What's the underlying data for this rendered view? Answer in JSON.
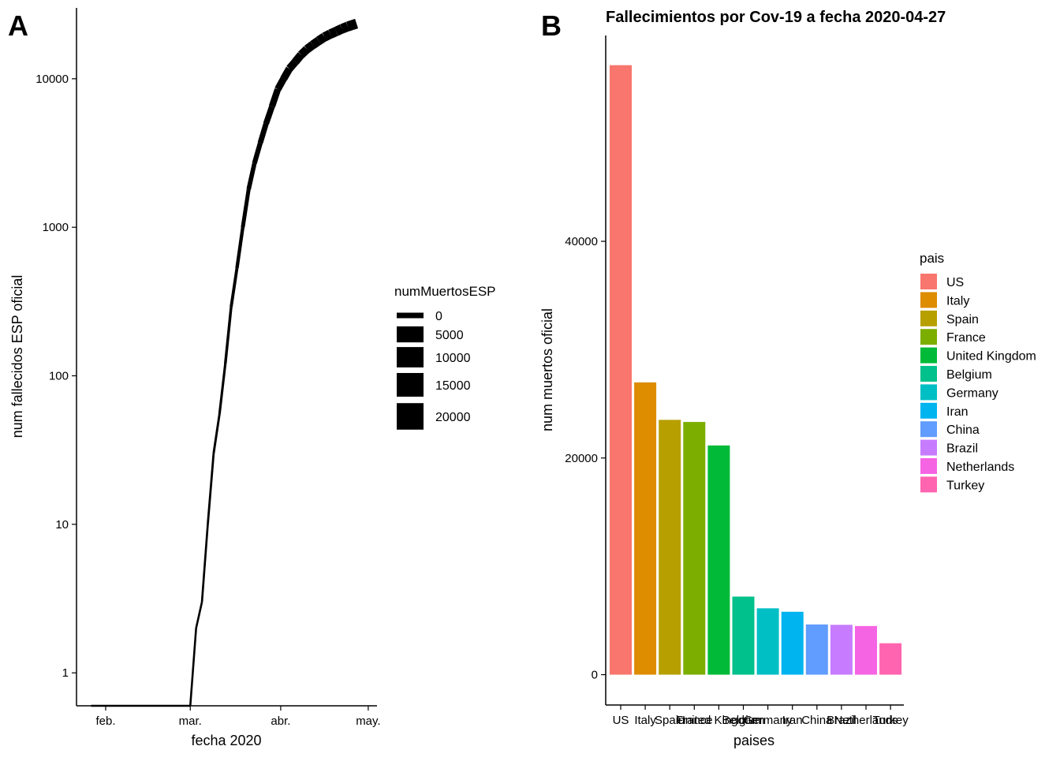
{
  "panels": {
    "a_letter": "A",
    "b_letter": "B"
  },
  "chart_data": [
    {
      "type": "line",
      "panel": "A",
      "xlabel": "fecha 2020",
      "ylabel": "num fallecidos ESP oficial",
      "yscale": "log",
      "y_ticks": [
        1,
        10,
        100,
        1000,
        10000
      ],
      "y_tick_labels": [
        "1",
        "10",
        "100",
        "1000",
        "10000"
      ],
      "x_ticks": [
        "2020-02-01",
        "2020-03-01",
        "2020-04-01",
        "2020-05-01"
      ],
      "x_tick_labels": [
        "feb.",
        "mar.",
        "abr.",
        "may."
      ],
      "xlim": [
        "2020-01-22",
        "2020-05-04"
      ],
      "ylim": [
        0.6,
        30000
      ],
      "grid": false,
      "legend": {
        "title": "numMuertosESP",
        "position": "right",
        "entries": [
          "0",
          "5000",
          "10000",
          "15000",
          "20000"
        ],
        "entry_values": [
          0,
          5000,
          10000,
          15000,
          20000
        ]
      },
      "series": [
        {
          "x": [
            "2020-01-27",
            "2020-03-01",
            "2020-03-03",
            "2020-03-05",
            "2020-03-07",
            "2020-03-09",
            "2020-03-11",
            "2020-03-13",
            "2020-03-15",
            "2020-03-17",
            "2020-03-19",
            "2020-03-21",
            "2020-03-23",
            "2020-03-25",
            "2020-03-27",
            "2020-03-29",
            "2020-03-31",
            "2020-04-02",
            "2020-04-04",
            "2020-04-06",
            "2020-04-08",
            "2020-04-10",
            "2020-04-12",
            "2020-04-14",
            "2020-04-16",
            "2020-04-18",
            "2020-04-20",
            "2020-04-22",
            "2020-04-24",
            "2020-04-27"
          ],
          "y": [
            0.6,
            0.6,
            2,
            3,
            10,
            30,
            55,
            120,
            290,
            530,
            1000,
            1800,
            2700,
            3700,
            5000,
            6500,
            8500,
            10000,
            11700,
            13000,
            14500,
            15800,
            16900,
            18000,
            19100,
            20000,
            20800,
            21700,
            22500,
            23500
          ]
        }
      ]
    },
    {
      "type": "bar",
      "panel": "B",
      "title": "Fallecimientos por Cov-19 a fecha 2020-04-27",
      "xlabel": "paises",
      "ylabel": "num muertos oficial",
      "categories": [
        "US",
        "Italy",
        "Spain",
        "France",
        "United Kingdom",
        "Belgium",
        "Germany",
        "Iran",
        "China",
        "Brazil",
        "Netherlands",
        "Turkey"
      ],
      "values": [
        56259,
        26977,
        23521,
        23327,
        21157,
        7207,
        6126,
        5806,
        4637,
        4603,
        4491,
        2900
      ],
      "colors": [
        "#F8766D",
        "#DE8C00",
        "#B79F00",
        "#7CAE00",
        "#00BA38",
        "#00C08B",
        "#00BFC4",
        "#00B4F0",
        "#619CFF",
        "#C77CFF",
        "#F564E3",
        "#FF64B0"
      ],
      "y_ticks": [
        0,
        20000,
        40000
      ],
      "y_tick_labels": [
        "0",
        "20000",
        "40000"
      ],
      "ylim": [
        -2800,
        59000
      ],
      "grid": false,
      "legend": {
        "title": "pais",
        "position": "right",
        "entries": [
          "US",
          "Italy",
          "Spain",
          "France",
          "United Kingdom",
          "Belgium",
          "Germany",
          "Iran",
          "China",
          "Brazil",
          "Netherlands",
          "Turkey"
        ]
      }
    }
  ]
}
